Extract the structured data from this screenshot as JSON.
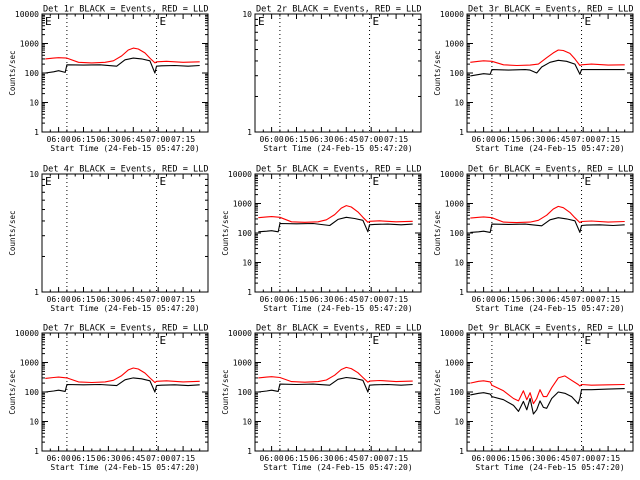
{
  "chart_data": {
    "type": "line",
    "x_tick_labels": [
      "06:00",
      "06:15",
      "06:30",
      "06:45",
      "07:00",
      "07:15"
    ],
    "x_range_minutes": [
      -10,
      90
    ],
    "x_ticks_minutes": [
      0,
      15,
      30,
      45,
      60,
      75
    ],
    "dotted_lines_minutes": [
      5,
      59
    ],
    "colors": {
      "events": "#000000",
      "lld": "#ff0000"
    },
    "series_legend": "BLACK = Events, RED = LLD",
    "panels": [
      {
        "title": "Det 1r BLACK = Events, RED = LLD",
        "xlabel": "Start Time (24-Feb-15 05:47:20)",
        "ylabel": "Counts/sec",
        "yscale": "log",
        "ylim": [
          1,
          10000
        ],
        "y_tick_labels": [
          "1",
          "10",
          "100",
          "1000",
          "10000"
        ],
        "annotations": [
          "E",
          "E"
        ],
        "series": [
          {
            "name": "Events",
            "x": [
              -8,
              -3,
              0,
              4,
              5,
              15,
              25,
              35,
              40,
              45,
              50,
              55,
              58,
              59,
              62,
              70,
              78,
              85
            ],
            "y": [
              100,
              110,
              120,
              105,
              190,
              185,
              190,
              170,
              280,
              320,
              300,
              260,
              100,
              170,
              175,
              180,
              170,
              180
            ]
          },
          {
            "name": "LLD",
            "x": [
              -8,
              -3,
              0,
              5,
              12,
              20,
              28,
              33,
              38,
              42,
              45,
              48,
              52,
              55,
              58,
              59,
              65,
              75,
              85
            ],
            "y": [
              300,
              320,
              330,
              320,
              230,
              220,
              230,
              260,
              380,
              600,
              700,
              650,
              480,
              320,
              220,
              240,
              250,
              230,
              240
            ]
          }
        ]
      },
      {
        "title": "Det 2r BLACK = Events, RED = LLD",
        "xlabel": "Start Time (24-Feb-15 05:47:20)",
        "ylabel": "",
        "yscale": "log",
        "ylim": [
          1,
          10
        ],
        "y_tick_labels": [
          "1",
          "10"
        ],
        "annotations": [
          "E",
          "E"
        ],
        "series": []
      },
      {
        "title": "Det 3r BLACK = Events, RED = LLD",
        "xlabel": "Start Time (24-Feb-15 05:47:20)",
        "ylabel": "Counts/sec",
        "yscale": "log",
        "ylim": [
          1,
          10000
        ],
        "y_tick_labels": [
          "1",
          "10",
          "100",
          "1000",
          "10000"
        ],
        "annotations": [
          "E"
        ],
        "series": [
          {
            "name": "Events",
            "x": [
              -8,
              0,
              4,
              5,
              15,
              25,
              28,
              32,
              35,
              40,
              45,
              50,
              55,
              58,
              59,
              70,
              85
            ],
            "y": [
              80,
              95,
              90,
              130,
              125,
              130,
              125,
              100,
              160,
              230,
              270,
              250,
              200,
              90,
              130,
              130,
              130
            ]
          },
          {
            "name": "LLD",
            "x": [
              -8,
              -3,
              0,
              5,
              12,
              20,
              28,
              33,
              38,
              42,
              45,
              48,
              52,
              55,
              58,
              59,
              65,
              75,
              85
            ],
            "y": [
              230,
              250,
              260,
              250,
              190,
              180,
              185,
              200,
              330,
              480,
              600,
              580,
              460,
              300,
              180,
              190,
              200,
              185,
              190
            ]
          }
        ]
      },
      {
        "title": "Det 4r BLACK = Events, RED = LLD",
        "xlabel": "Start Time (24-Feb-15 05:47:20)",
        "ylabel": "Counts/sec",
        "yscale": "log",
        "ylim": [
          1,
          10
        ],
        "y_tick_labels": [
          "1",
          "10"
        ],
        "annotations": [
          "E",
          "E"
        ],
        "series": []
      },
      {
        "title": "Det 5r BLACK = Events, RED = LLD",
        "xlabel": "Start Time (24-Feb-15 05:47:20)",
        "ylabel": "Counts/sec",
        "yscale": "log",
        "ylim": [
          1,
          10000
        ],
        "y_tick_labels": [
          "1",
          "10",
          "100",
          "1000",
          "10000"
        ],
        "annotations": [
          "E"
        ],
        "series": [
          {
            "name": "Events",
            "x": [
              -8,
              -3,
              0,
              4,
              5,
              15,
              25,
              35,
              40,
              45,
              50,
              55,
              58,
              59,
              62,
              70,
              78,
              85
            ],
            "y": [
              110,
              115,
              120,
              110,
              210,
              205,
              210,
              180,
              290,
              340,
              310,
              270,
              110,
              190,
              195,
              200,
              190,
              200
            ]
          },
          {
            "name": "LLD",
            "x": [
              -8,
              -3,
              0,
              5,
              12,
              20,
              28,
              33,
              38,
              42,
              45,
              48,
              52,
              55,
              58,
              59,
              65,
              75,
              85
            ],
            "y": [
              330,
              350,
              360,
              340,
              240,
              230,
              240,
              280,
              420,
              700,
              850,
              760,
              520,
              340,
              230,
              250,
              260,
              240,
              250
            ]
          }
        ]
      },
      {
        "title": "Det 6r BLACK = Events, RED = LLD",
        "xlabel": "Start Time (24-Feb-15 05:47:20)",
        "ylabel": "Counts/sec",
        "yscale": "log",
        "ylim": [
          1,
          10000
        ],
        "y_tick_labels": [
          "1",
          "10",
          "100",
          "1000",
          "10000"
        ],
        "annotations": [
          "E"
        ],
        "series": [
          {
            "name": "Events",
            "x": [
              -8,
              -3,
              0,
              4,
              5,
              15,
              25,
              35,
              40,
              45,
              50,
              55,
              58,
              59,
              62,
              70,
              78,
              85
            ],
            "y": [
              105,
              110,
              115,
              105,
              200,
              195,
              200,
              175,
              280,
              330,
              300,
              260,
              105,
              180,
              185,
              190,
              180,
              190
            ]
          },
          {
            "name": "LLD",
            "x": [
              -8,
              -3,
              0,
              5,
              12,
              20,
              28,
              33,
              38,
              42,
              45,
              48,
              52,
              55,
              58,
              59,
              65,
              75,
              85
            ],
            "y": [
              320,
              340,
              350,
              330,
              235,
              225,
              235,
              270,
              400,
              650,
              800,
              720,
              500,
              330,
              225,
              245,
              255,
              235,
              245
            ]
          }
        ]
      },
      {
        "title": "Det 7r BLACK = Events, RED = LLD",
        "xlabel": "Start Time (24-Feb-15 05:47:20)",
        "ylabel": "Counts/sec",
        "yscale": "log",
        "ylim": [
          1,
          10000
        ],
        "y_tick_labels": [
          "1",
          "10",
          "100",
          "1000",
          "10000"
        ],
        "annotations": [
          "E"
        ],
        "series": [
          {
            "name": "Events",
            "x": [
              -8,
              -3,
              0,
              4,
              5,
              15,
              25,
              35,
              40,
              45,
              50,
              55,
              58,
              59,
              62,
              70,
              78,
              85
            ],
            "y": [
              100,
              108,
              115,
              105,
              180,
              175,
              180,
              165,
              260,
              300,
              280,
              240,
              100,
              165,
              170,
              175,
              165,
              175
            ]
          },
          {
            "name": "LLD",
            "x": [
              -8,
              -3,
              0,
              5,
              12,
              20,
              28,
              33,
              38,
              42,
              45,
              48,
              52,
              55,
              58,
              59,
              65,
              75,
              85
            ],
            "y": [
              290,
              310,
              320,
              300,
              220,
              210,
              220,
              250,
              360,
              560,
              650,
              600,
              440,
              300,
              210,
              230,
              240,
              220,
              230
            ]
          }
        ]
      },
      {
        "title": "Det 8r BLACK = Events, RED = LLD",
        "xlabel": "Start Time (24-Feb-15 05:47:20)",
        "ylabel": "Counts/sec",
        "yscale": "log",
        "ylim": [
          1,
          10000
        ],
        "y_tick_labels": [
          "1",
          "10",
          "100",
          "1000",
          "10000"
        ],
        "annotations": [
          "E"
        ],
        "series": [
          {
            "name": "Events",
            "x": [
              -8,
              -3,
              0,
              4,
              5,
              15,
              25,
              35,
              40,
              45,
              50,
              55,
              58,
              59,
              62,
              70,
              78,
              85
            ],
            "y": [
              100,
              108,
              115,
              105,
              185,
              180,
              185,
              170,
              270,
              310,
              290,
              250,
              100,
              170,
              175,
              180,
              170,
              180
            ]
          },
          {
            "name": "LLD",
            "x": [
              -8,
              -3,
              0,
              5,
              12,
              20,
              28,
              33,
              38,
              42,
              45,
              48,
              52,
              55,
              58,
              59,
              65,
              75,
              85
            ],
            "y": [
              300,
              320,
              330,
              310,
              225,
              215,
              225,
              255,
              370,
              580,
              680,
              620,
              450,
              310,
              215,
              235,
              245,
              225,
              235
            ]
          }
        ]
      },
      {
        "title": "Det 9r BLACK = Events, RED = LLD",
        "xlabel": "Start Time (24-Feb-15 05:47:20)",
        "ylabel": "Counts/sec",
        "yscale": "log",
        "ylim": [
          1,
          10000
        ],
        "y_tick_labels": [
          "1",
          "10",
          "100",
          "1000",
          "10000"
        ],
        "annotations": [
          "E"
        ],
        "series": [
          {
            "name": "Events",
            "x": [
              -8,
              -3,
              0,
              4,
              5,
              12,
              18,
              21,
              24,
              26,
              28,
              30,
              32,
              34,
              36,
              38,
              41,
              45,
              49,
              53,
              57,
              58,
              59,
              65,
              75,
              85
            ],
            "y": [
              80,
              90,
              95,
              85,
              70,
              55,
              35,
              22,
              48,
              25,
              60,
              18,
              25,
              50,
              30,
              28,
              60,
              100,
              90,
              70,
              40,
              60,
              120,
              120,
              125,
              130
            ]
          },
          {
            "name": "LLD",
            "x": [
              -8,
              -3,
              0,
              4,
              5,
              12,
              18,
              21,
              24,
              26,
              28,
              30,
              32,
              34,
              36,
              38,
              41,
              45,
              49,
              53,
              57,
              58,
              59,
              65,
              75,
              85
            ],
            "y": [
              200,
              230,
              240,
              220,
              170,
              110,
              60,
              50,
              110,
              55,
              95,
              40,
              60,
              120,
              70,
              70,
              140,
              300,
              350,
              250,
              180,
              160,
              180,
              170,
              175,
              180
            ]
          }
        ]
      }
    ]
  }
}
